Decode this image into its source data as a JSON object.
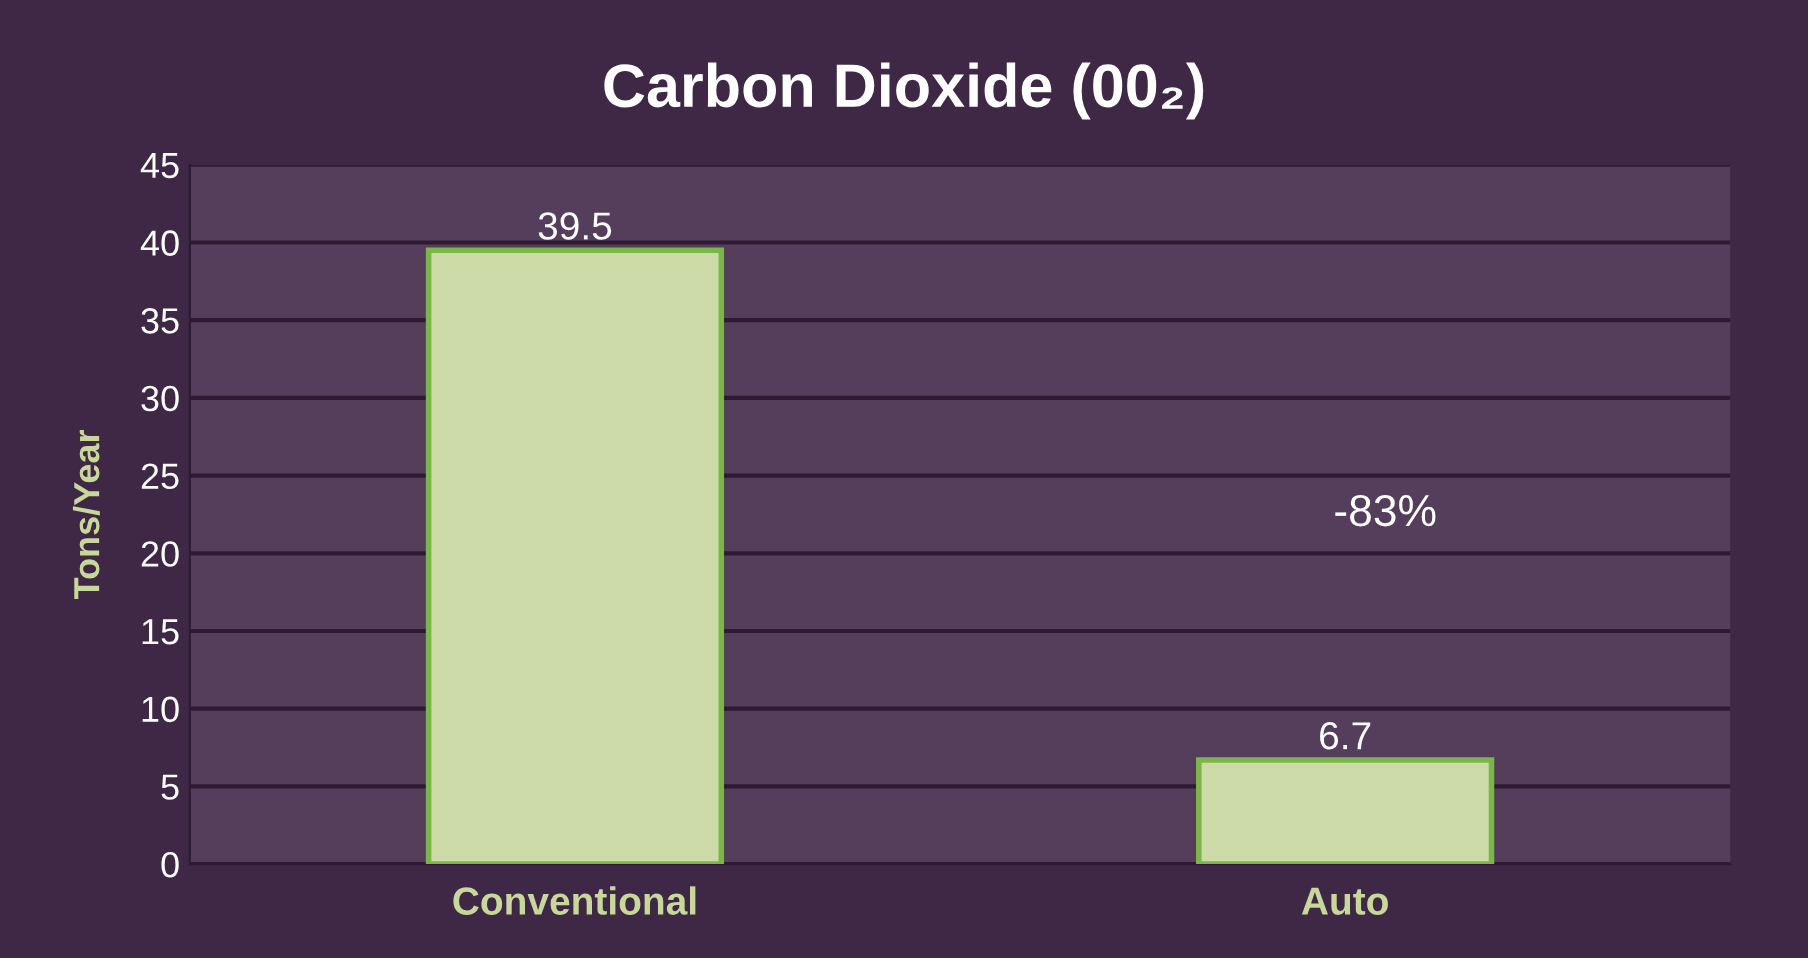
{
  "chart_data": {
    "type": "bar",
    "title": "Carbon Dioxide (00₂)",
    "ylabel": "Tons/Year",
    "categories": [
      "Conventional",
      "Auto"
    ],
    "values": [
      39.5,
      6.7
    ],
    "color": "#cddba8",
    "ylim": [
      0,
      45
    ],
    "yticks": [
      0,
      5,
      10,
      15,
      20,
      25,
      30,
      35,
      40,
      45
    ],
    "grid": "y",
    "data_labels": true,
    "legend": false,
    "annotations": [
      "-83%"
    ]
  }
}
